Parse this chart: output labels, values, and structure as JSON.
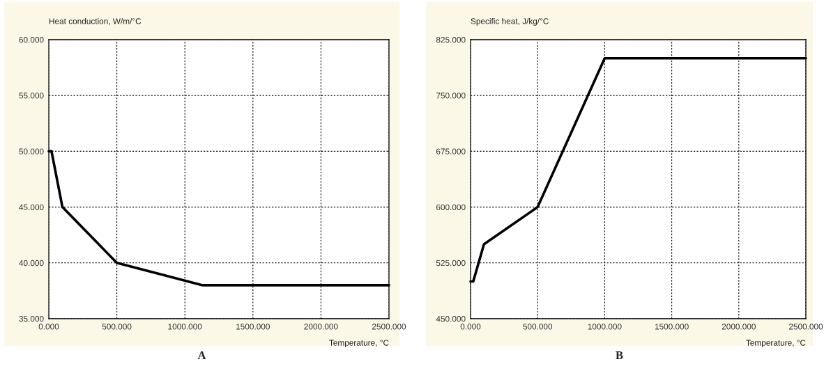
{
  "chart_data": [
    {
      "type": "line",
      "ylabel": "Heat conduction, W/m/°C",
      "xlabel": "Temperature, °C",
      "annotations": [
        "A"
      ],
      "x": [
        0,
        20,
        100,
        500,
        1130,
        2500
      ],
      "series": [
        {
          "color": "#000000",
          "values": [
            50,
            50,
            45,
            40,
            38,
            38
          ]
        }
      ],
      "xlim": [
        0,
        2500
      ],
      "xticks": [
        {
          "value": 0,
          "label": "0.000"
        },
        {
          "value": 500,
          "label": "500.000"
        },
        {
          "value": 1000,
          "label": "1000.000"
        },
        {
          "value": 1500,
          "label": "1500.000"
        },
        {
          "value": 2000,
          "label": "2000.000"
        },
        {
          "value": 2500,
          "label": "2500.000"
        }
      ],
      "ylim": [
        35,
        60
      ],
      "yticks": [
        {
          "value": 35,
          "label": "35.000"
        },
        {
          "value": 40,
          "label": "40.000"
        },
        {
          "value": 45,
          "label": "45.000"
        },
        {
          "value": 50,
          "label": "50.000"
        },
        {
          "value": 55,
          "label": "55.000"
        },
        {
          "value": 60,
          "label": "60.000"
        }
      ],
      "grid": true,
      "legend": false,
      "line_style": "solid",
      "marker": "none"
    },
    {
      "type": "line",
      "ylabel": "Specific heat, J/kg/°C",
      "xlabel": "Temperature, °C",
      "annotations": [
        "B"
      ],
      "x": [
        0,
        20,
        100,
        500,
        1000,
        2500
      ],
      "series": [
        {
          "color": "#000000",
          "values": [
            500,
            500,
            550,
            600,
            800,
            800
          ]
        }
      ],
      "xlim": [
        0,
        2500
      ],
      "xticks": [
        {
          "value": 0,
          "label": "0.000"
        },
        {
          "value": 500,
          "label": "500.000"
        },
        {
          "value": 1000,
          "label": "1000.000"
        },
        {
          "value": 1500,
          "label": "1500.000"
        },
        {
          "value": 2000,
          "label": "2000.000"
        },
        {
          "value": 2500,
          "label": "2500.000"
        }
      ],
      "ylim": [
        450,
        825
      ],
      "yticks": [
        {
          "value": 450,
          "label": "450.000"
        },
        {
          "value": 525,
          "label": "525.000"
        },
        {
          "value": 600,
          "label": "600.000"
        },
        {
          "value": 675,
          "label": "675.000"
        },
        {
          "value": 750,
          "label": "750.000"
        },
        {
          "value": 825,
          "label": "825.000"
        }
      ],
      "grid": true,
      "legend": false,
      "line_style": "solid",
      "marker": "none"
    }
  ]
}
